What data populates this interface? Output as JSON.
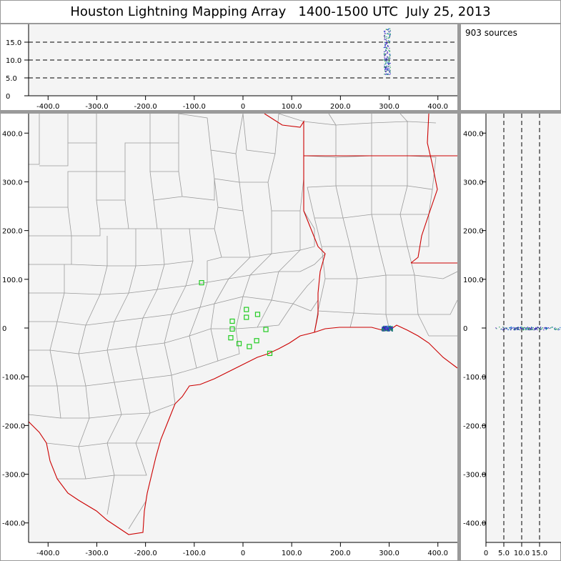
{
  "title": "Houston Lightning Mapping Array   1400-1500 UTC  July 25, 2013",
  "source_count": "903 sources",
  "top_panel": {
    "y_ticks": [
      "0",
      "5.0",
      "10.0",
      "15.0"
    ],
    "dashed_levels": [
      5,
      10,
      15
    ],
    "x_ticks": [
      "-400.0",
      "-300.0",
      "-200.0",
      "-100.0",
      "0",
      "100.0",
      "200.0",
      "300.0",
      "400.0"
    ]
  },
  "map_panel": {
    "y_ticks": [
      "400.0",
      "300.0",
      "200.0",
      "100.0",
      "0",
      "-100.0",
      "-200.0",
      "-300.0",
      "-400.0"
    ],
    "x_ticks": [
      "-400.0",
      "-300.0",
      "-200.0",
      "-100.0",
      "0",
      "100.0",
      "200.0",
      "300.0",
      "400.0"
    ],
    "stations": [
      [
        -85,
        93
      ],
      [
        -22,
        14
      ],
      [
        -22,
        -2
      ],
      [
        -25,
        -20
      ],
      [
        -8,
        -32
      ],
      [
        7,
        22
      ],
      [
        7,
        38
      ],
      [
        30,
        28
      ],
      [
        13,
        -38
      ],
      [
        28,
        -26
      ],
      [
        47,
        -3
      ],
      [
        55,
        -52
      ]
    ],
    "source_cluster_center": [
      295,
      0
    ]
  },
  "side_panel": {
    "y_ticks": [
      "400.0",
      "300.0",
      "200.0",
      "100.0",
      "0",
      "-100.0",
      "-200.0",
      "-300.0",
      "-400.0"
    ],
    "x_ticks": [
      "0",
      "5.0",
      "10.0",
      "15.0"
    ],
    "dashed_levels": [
      5,
      10,
      15
    ]
  },
  "colors": {
    "frame": "#9a9a9a",
    "panel_bg": "#f4f4f4",
    "county_line": "#999999",
    "state_line": "#cc0000",
    "station": "#22cc22",
    "sources": "#2a0db0"
  }
}
